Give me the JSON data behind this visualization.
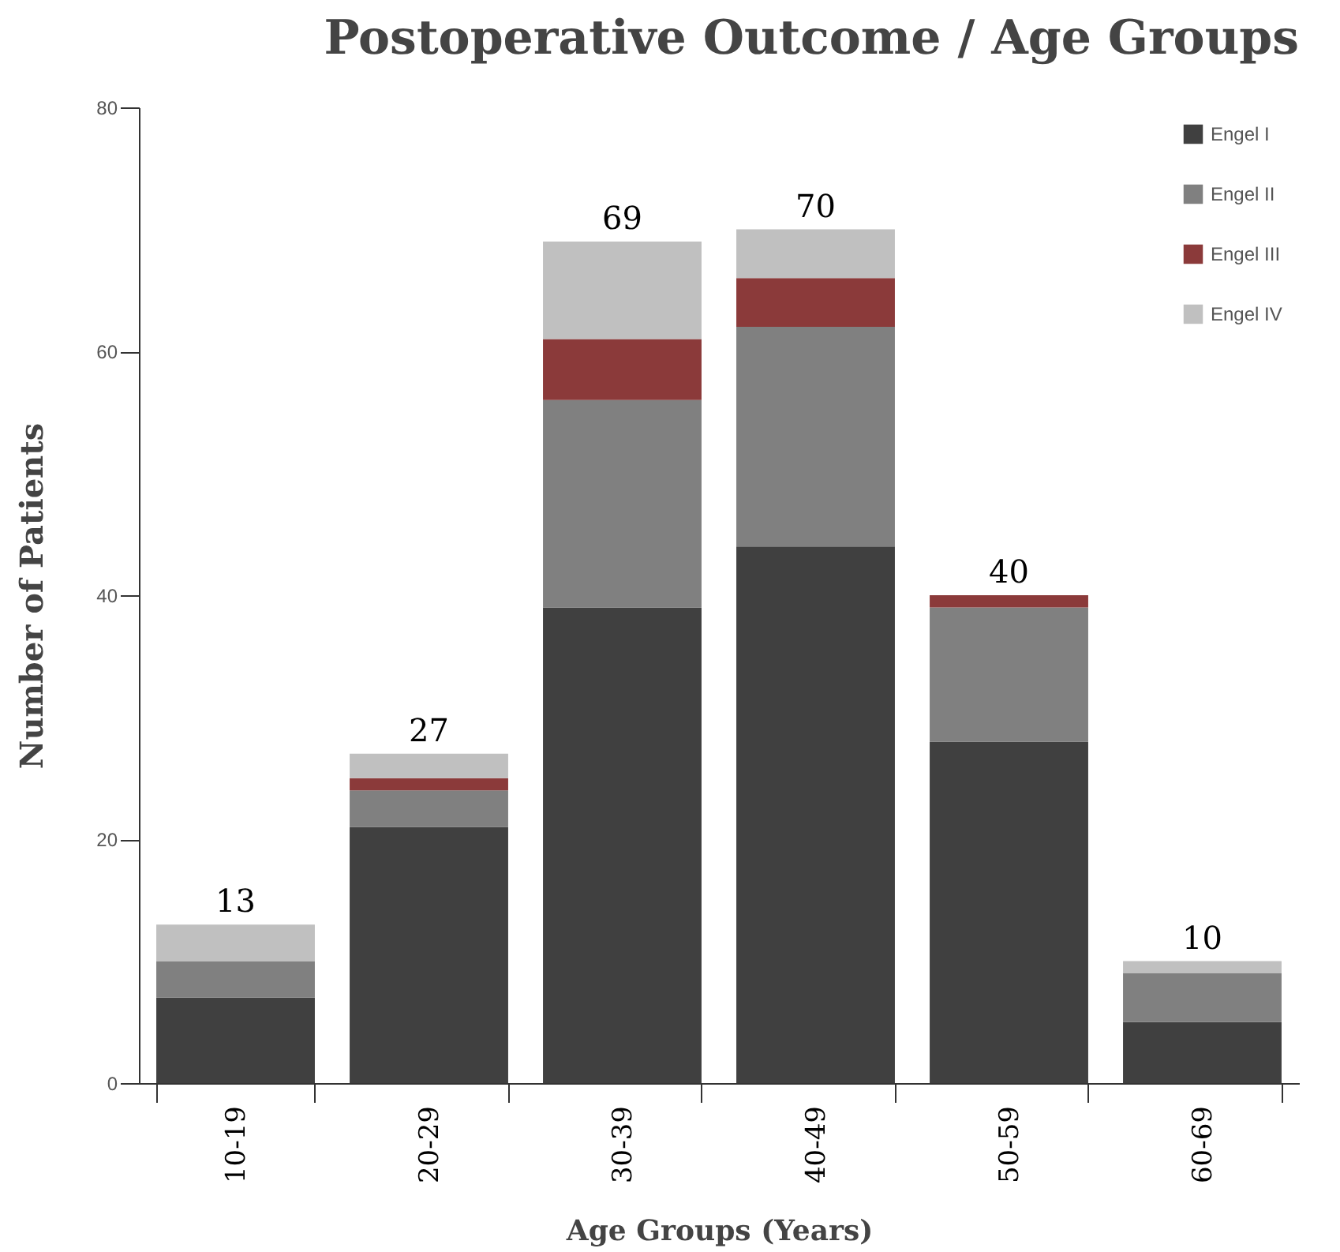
{
  "chart_data": {
    "type": "bar",
    "title": "Postoperative Outcome / Age Groups",
    "xlabel": "Age Groups (Years)",
    "ylabel": "Number of Patients",
    "categories": [
      "10-19",
      "20-29",
      "30-39",
      "40-49",
      "50-59",
      "60-69"
    ],
    "stacked": true,
    "series": [
      {
        "name": "Engel I",
        "color": "#404040",
        "values": [
          7,
          21,
          39,
          44,
          28,
          5
        ]
      },
      {
        "name": "Engel II",
        "color": "#808080",
        "values": [
          3,
          3,
          17,
          18,
          11,
          4
        ]
      },
      {
        "name": "Engel III",
        "color": "#8b3a3a",
        "values": [
          0,
          1,
          5,
          4,
          1,
          0
        ]
      },
      {
        "name": "Engel IV",
        "color": "#c0c0c0",
        "values": [
          3,
          2,
          8,
          4,
          0,
          1
        ]
      }
    ],
    "totals": [
      "13",
      "27",
      "69",
      "70",
      "40",
      "10"
    ],
    "ylim": [
      0,
      80
    ],
    "yticks": [
      0,
      20,
      40,
      60,
      80
    ],
    "grid": false,
    "legend": "top right"
  }
}
